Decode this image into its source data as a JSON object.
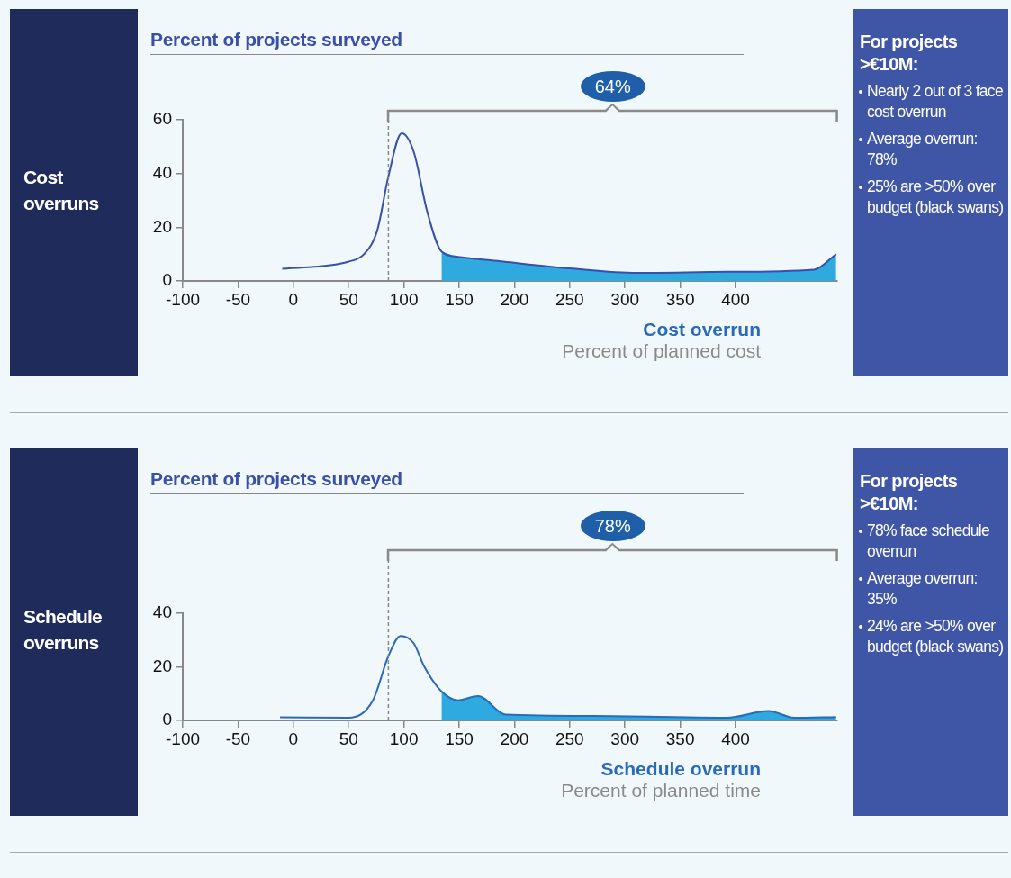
{
  "chart_data": [
    {
      "type": "line",
      "title": "Cost overruns",
      "ylabel": "Percent of projects surveyed",
      "xlabel": "Cost overrun",
      "marker": "none",
      "legend": false,
      "grid": false,
      "xlim": [
        -100,
        492
      ],
      "xticks": [
        -100,
        -50,
        0,
        50,
        100,
        150,
        200,
        250,
        300,
        350,
        400
      ],
      "ylim": [
        0,
        60
      ],
      "yticks": [
        0,
        20,
        40,
        60
      ],
      "series": [
        {
          "type": "line",
          "color": "#3a4fa8",
          "x": [
            -10,
            50,
            64,
            76,
            86,
            98,
            109,
            121,
            134,
            149,
            190,
            250,
            311,
            392,
            471,
            491
          ],
          "values": [
            4.5,
            7.2,
            10,
            19,
            39,
            55,
            48,
            26,
            11,
            9,
            7.2,
            4.7,
            3,
            3.4,
            4.2,
            10
          ]
        },
        {
          "type": "area",
          "color": "#2eaae1",
          "x": [
            134,
            149,
            190,
            250,
            311,
            392,
            471,
            491
          ],
          "values": [
            11,
            9,
            7.2,
            4.7,
            3,
            3.4,
            4.2,
            10
          ]
        }
      ],
      "ref_lines": [
        {
          "axis": "x",
          "value": 86,
          "color": "#888888",
          "line_style": "dashed"
        }
      ],
      "annotations": [
        "Percent of planned cost",
        "64%",
        "For projects >€10M:",
        "Nearly 2 out of 3 face cost overrun",
        "Average overrun: 78%",
        "25% are >50% over budget (black swans)"
      ]
    },
    {
      "type": "line",
      "title": "Schedule overruns",
      "ylabel": "Percent of projects surveyed",
      "xlabel": "Schedule overrun",
      "marker": "none",
      "legend": false,
      "grid": false,
      "xlim": [
        -100,
        492
      ],
      "xticks": [
        -100,
        -50,
        0,
        50,
        100,
        150,
        200,
        250,
        300,
        350,
        400
      ],
      "ylim": [
        0,
        40
      ],
      "yticks": [
        0,
        20,
        40
      ],
      "series": [
        {
          "type": "line",
          "color": "#2a6ab8",
          "x": [
            -12,
            50,
            72,
            86,
            97,
            109,
            118,
            134,
            149,
            167,
            192,
            271,
            392,
            430,
            453,
            491
          ],
          "values": [
            1.2,
            1,
            7.5,
            24,
            31.5,
            28.7,
            20.4,
            10.8,
            7.5,
            9.1,
            2.2,
            1.7,
            1,
            3.5,
            1,
            1.3
          ]
        },
        {
          "type": "area",
          "color": "#2eaae1",
          "x": [
            134,
            149,
            167,
            192,
            271,
            392,
            430,
            453,
            491
          ],
          "values": [
            10.8,
            7.5,
            9.1,
            2.2,
            1.7,
            1,
            3.5,
            1,
            1.3
          ]
        }
      ],
      "ref_lines": [
        {
          "axis": "x",
          "value": 86,
          "color": "#888888",
          "line_style": "dashed"
        }
      ],
      "annotations": [
        "Percent of planned time",
        "78%",
        "For projects >€10M:",
        "78% face schedule overrun",
        "Average overrun: 35%",
        "24% are >50% over budget (black swans)"
      ]
    }
  ]
}
